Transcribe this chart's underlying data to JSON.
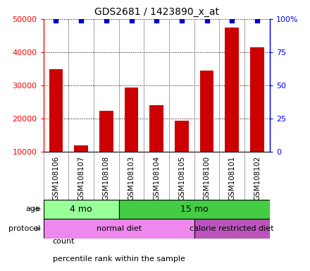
{
  "title": "GDS2681 / 1423890_x_at",
  "samples": [
    "GSM108106",
    "GSM108107",
    "GSM108108",
    "GSM108103",
    "GSM108104",
    "GSM108105",
    "GSM108100",
    "GSM108101",
    "GSM108102"
  ],
  "counts": [
    35000,
    12000,
    22500,
    29500,
    24000,
    19500,
    34500,
    47500,
    41500
  ],
  "bar_color": "#cc0000",
  "dot_color": "#0000cc",
  "ylim": [
    10000,
    50000
  ],
  "yticks": [
    10000,
    20000,
    30000,
    40000,
    50000
  ],
  "right_yticks": [
    0,
    25,
    50,
    75,
    100
  ],
  "right_ylabels": [
    "0",
    "25",
    "50",
    "75",
    "100%"
  ],
  "age_groups": [
    {
      "label": "4 mo",
      "start": 0,
      "end": 3,
      "color": "#99ff99"
    },
    {
      "label": "15 mo",
      "start": 3,
      "end": 9,
      "color": "#44cc44"
    }
  ],
  "protocol_groups": [
    {
      "label": "normal diet",
      "start": 0,
      "end": 6,
      "color": "#ee88ee"
    },
    {
      "label": "calorie restricted diet",
      "start": 6,
      "end": 9,
      "color": "#bb55bb"
    }
  ],
  "tick_area_color": "#cccccc",
  "legend_items": [
    {
      "color": "#cc0000",
      "label": "count"
    },
    {
      "color": "#0000cc",
      "label": "percentile rank within the sample"
    }
  ]
}
